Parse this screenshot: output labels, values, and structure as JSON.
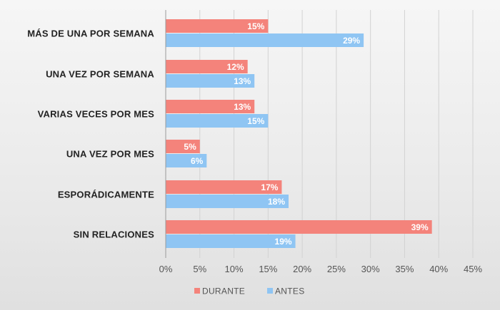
{
  "chart_data": {
    "type": "bar",
    "orientation": "horizontal",
    "categories": [
      "MÁS DE UNA POR SEMANA",
      "UNA VEZ POR SEMANA",
      "VARIAS VECES POR MES",
      "UNA VEZ POR MES",
      "ESPORÁDICAMENTE",
      "SIN RELACIONES"
    ],
    "series": [
      {
        "name": "DURANTE",
        "color": "#f4837b",
        "values": [
          15,
          12,
          13,
          5,
          17,
          39
        ],
        "labels": [
          "15%",
          "12%",
          "13%",
          "5%",
          "17%",
          "39%"
        ]
      },
      {
        "name": "ANTES",
        "color": "#8fc5f3",
        "values": [
          29,
          13,
          15,
          6,
          18,
          19
        ],
        "labels": [
          "29%",
          "13%",
          "15%",
          "6%",
          "18%",
          "19%"
        ]
      }
    ],
    "xlim": [
      0,
      45
    ],
    "xticks": [
      "0%",
      "5%",
      "10%",
      "15%",
      "20%",
      "25%",
      "30%",
      "35%",
      "40%",
      "45%"
    ],
    "grid": true,
    "legend_position": "bottom"
  }
}
